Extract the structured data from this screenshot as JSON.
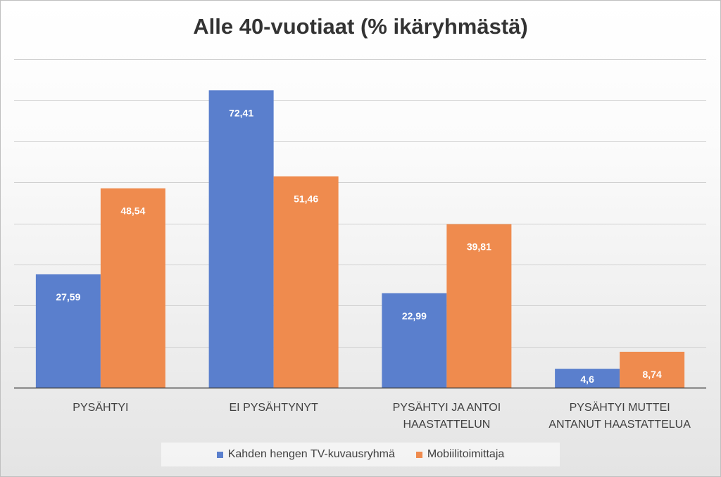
{
  "chart_data": {
    "type": "bar",
    "title": "Alle 40-vuotiaat (% ikäryhmästä)",
    "categories": [
      [
        "PYSÄHTYI"
      ],
      [
        "EI PYSÄHTYNYT"
      ],
      [
        "PYSÄHTYI JA ANTOI",
        "HAASTATTELUN"
      ],
      [
        "PYSÄHTYI MUTTEI",
        "ANTANUT HAASTATTELUA"
      ]
    ],
    "series": [
      {
        "name": "Kahden hengen TV-kuvausryhmä",
        "color": "#5a7fcd",
        "values": [
          27.59,
          72.41,
          22.99,
          4.6
        ],
        "labels": [
          "27,59",
          "72,41",
          "22,99",
          "4,6"
        ]
      },
      {
        "name": "Mobiilitoimittaja",
        "color": "#ef8b4e",
        "values": [
          48.54,
          51.46,
          39.81,
          8.74
        ],
        "labels": [
          "48,54",
          "51,46",
          "39,81",
          "8,74"
        ]
      }
    ],
    "ylim": [
      0,
      80
    ],
    "gridlines": true,
    "y_tick_labels_shown": false,
    "legend_position": "bottom"
  }
}
